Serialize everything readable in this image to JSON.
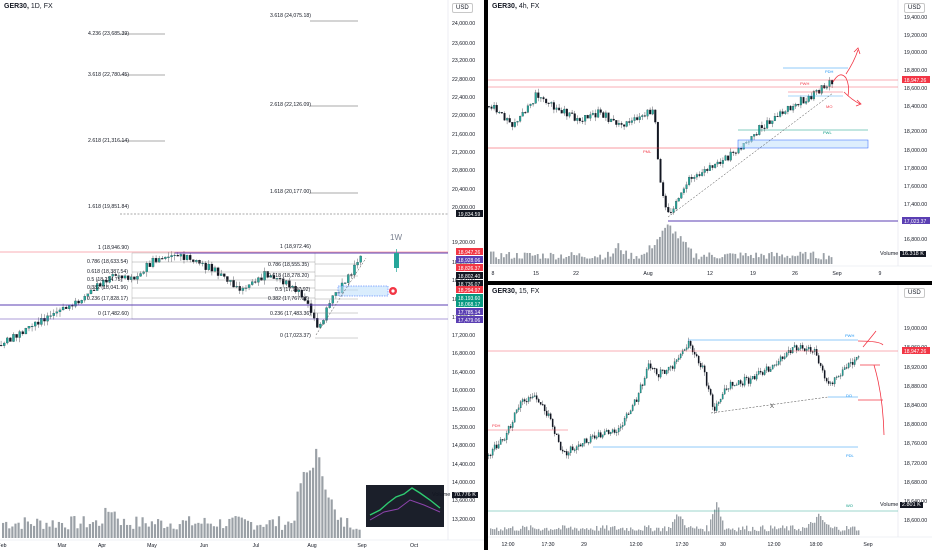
{
  "panes": {
    "left": {
      "symbol": "GER30",
      "timeframe": "1D, FX",
      "currency": "USD",
      "price_axis": [
        "24,000.00",
        "23,600.00",
        "23,200.00",
        "22,800.00",
        "22,400.00",
        "22,000.00",
        "21,600.00",
        "21,200.00",
        "20,800.00",
        "20,400.00",
        "20,000.00",
        "19,200.00",
        "18,800.00",
        "18,400.00",
        "18,000.00",
        "17,600.00",
        "17,200.00",
        "16,800.00",
        "16,400.00",
        "16,000.00",
        "15,600.00",
        "15,200.00",
        "14,800.00",
        "14,400.00",
        "14,000.00",
        "13,600.00",
        "13,200.00"
      ],
      "time_axis": [
        "Feb",
        "Mar",
        "Apr",
        "May",
        "Jun",
        "Jul",
        "Aug",
        "Sep",
        "Oct"
      ],
      "fib_labels": {
        "f1": "3.618 (24,075.18)",
        "f2": "4.236 (23,685.39)",
        "f3": "3.618 (22,780.45)",
        "f4": "2.618 (22,126.09)",
        "f5": "2.618 (21,316.14)",
        "f6": "1.618 (20,177.00)",
        "f7": "1.618 (19,851.84)",
        "f8": "1 (18,946.90)",
        "f9": "1 (18,972.46)",
        "f10": "0.786 (18,633.54)",
        "f11": "0.618 (18,387.54)",
        "f12": "0.5 (18,214.75)",
        "f13": "0.382 (18,041.96)",
        "f14": "0.236 (17,828.17)",
        "f15": "0 (17,482.60)",
        "f16": "0.786 (18,555.35)",
        "f17": "0.618 (18,278.20)",
        "f18": "0.5 (17,997.92)",
        "f19": "0.382 (17,767.92)",
        "f20": "0.236 (17,483.36)",
        "f21": "0 (17,023.37)"
      },
      "annotation_1w": "1W",
      "price_tags": [
        {
          "text": "19,834.59",
          "color": "#131722"
        },
        {
          "text": "18,947.26",
          "color": "#f23645"
        },
        {
          "text": "18,928.06",
          "color": "#5b3fb3"
        },
        {
          "text": "18,826.37",
          "color": "#f23645"
        },
        {
          "text": "18,802.40",
          "color": "#131722"
        },
        {
          "text": "18,736.07",
          "color": "#131722"
        },
        {
          "text": "18,294.97",
          "color": "#f23645"
        },
        {
          "text": "18,193.60",
          "color": "#089981"
        },
        {
          "text": "18,068.17",
          "color": "#089981"
        },
        {
          "text": "17,785.14",
          "color": "#5b3fb3"
        },
        {
          "text": "17,479.06",
          "color": "#5b3fb3"
        }
      ],
      "volume_label": "Volume",
      "volume_value": "70.776 K"
    },
    "top_right": {
      "symbol": "GER30",
      "timeframe": "4h, FX",
      "currency": "USD",
      "price_axis": [
        "19,400.00",
        "19,200.00",
        "19,000.00",
        "18,800.00",
        "18,600.00",
        "18,400.00",
        "18,200.00",
        "18,000.00",
        "17,800.00",
        "17,600.00",
        "17,400.00",
        "17,200.00",
        "16,800.00"
      ],
      "time_axis": [
        "8",
        "15",
        "22",
        "Aug",
        "12",
        "19",
        "26",
        "Sep",
        "9"
      ],
      "level_labels": {
        "pdh": "PDH",
        "pwh": "PWH",
        "pdl": "PDL",
        "pwl": "PWL",
        "pml": "PML",
        "pwl2": "PWL",
        "mo": "MO"
      },
      "price_tags": [
        {
          "text": "18,947.26",
          "color": "#f23645"
        },
        {
          "text": "17,023.37",
          "color": "#5b3fb3"
        }
      ],
      "volume_label": "Volume",
      "volume_value": "16.318 K"
    },
    "bottom_right": {
      "symbol": "GER30",
      "timeframe": "15, FX",
      "currency": "USD",
      "price_axis": [
        "19,000.00",
        "18,960.00",
        "18,920.00",
        "18,880.00",
        "18,840.00",
        "18,800.00",
        "18,760.00",
        "18,720.00",
        "18,680.00",
        "18,640.00",
        "18,600.00"
      ],
      "left_axis": [
        "17,200.00",
        "16,800.00",
        "16,400.00",
        "16,000.00",
        "15,600.00",
        "15,200.00",
        "14,800.00",
        "14,400.00",
        "14,000.00",
        "13,600.00",
        "13,200.00"
      ],
      "time_axis": [
        "12:00",
        "17:30",
        "29",
        "12:00",
        "17:30",
        "30",
        "12:00",
        "18:00",
        "Sep"
      ],
      "level_labels": {
        "pdh": "PDH",
        "pwh": "PWH",
        "do": "DO",
        "pdl": "PDL",
        "wo": "WO",
        "x": "X"
      },
      "price_tags": [
        {
          "text": "18,947.26",
          "color": "#f23645"
        }
      ],
      "volume_label": "Volume",
      "volume_value": "2.801 K"
    }
  }
}
